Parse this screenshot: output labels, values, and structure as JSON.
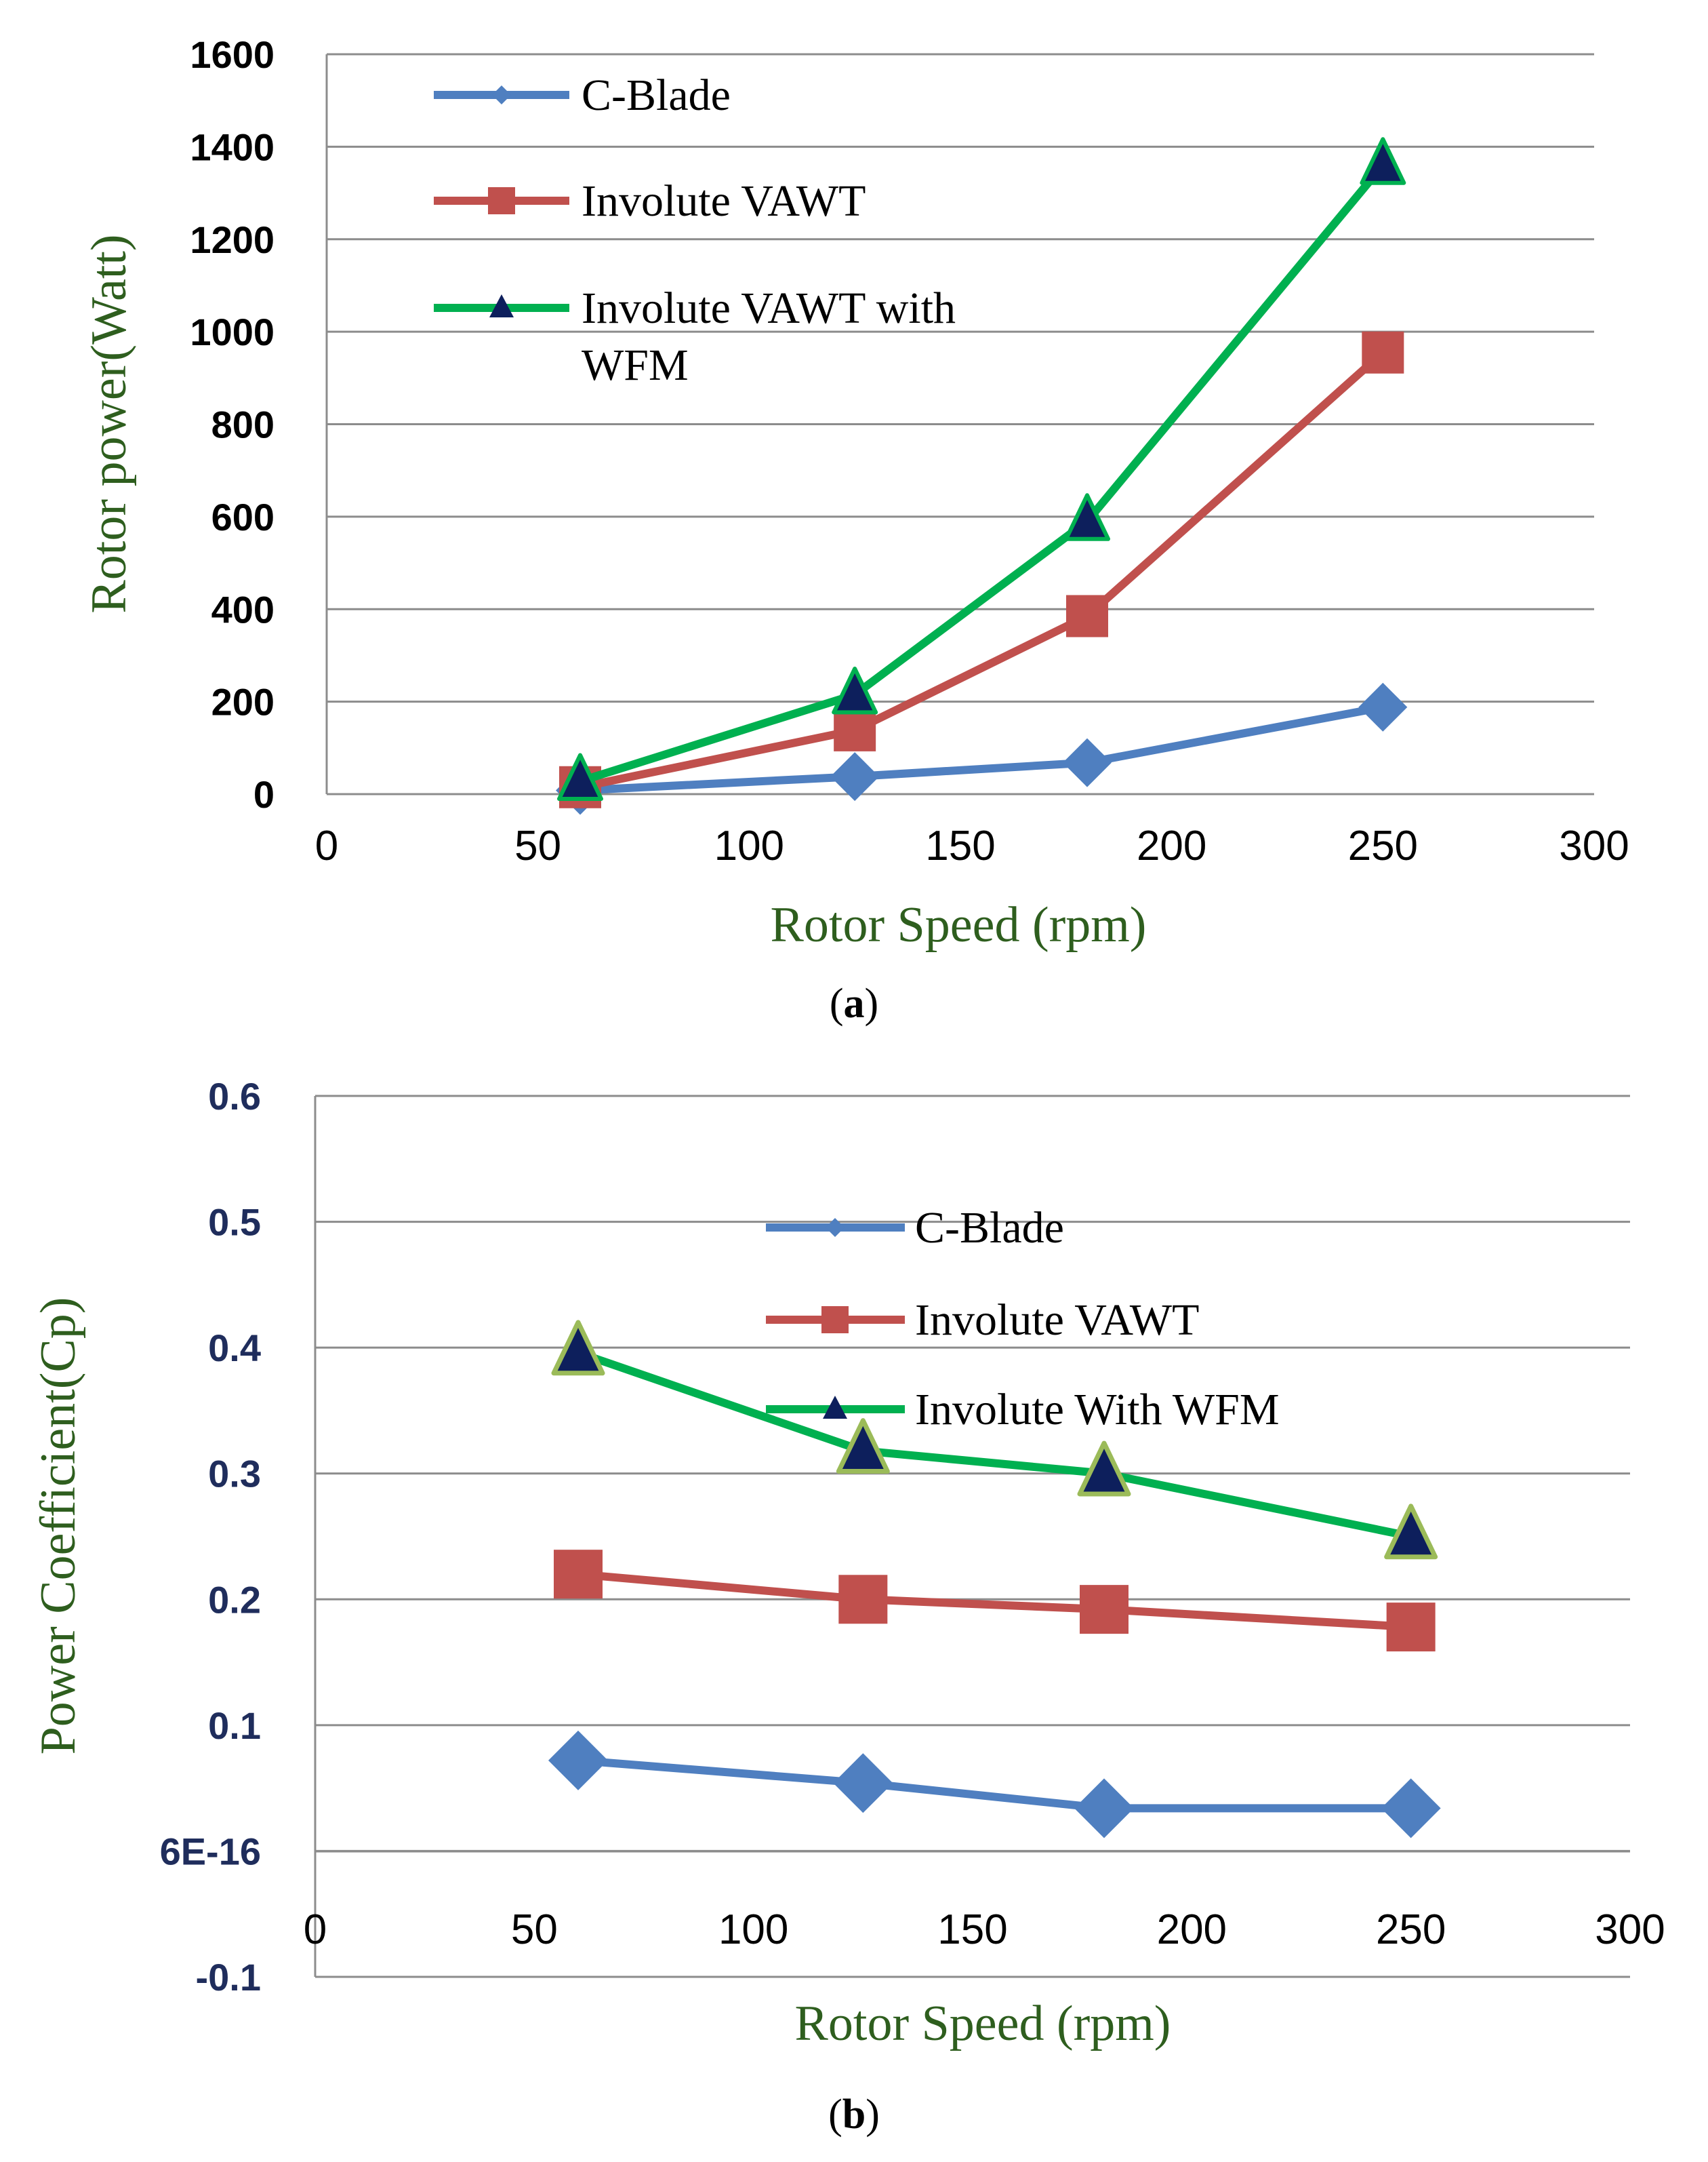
{
  "colors": {
    "c_blade": "#4f7fc0",
    "involute": "#c0504d",
    "involute_wfm": "#00b050",
    "triangle_fill": "#0d1f5c",
    "triangle_edge_b": "#9bbb59",
    "axis_title": "#2e5e1e",
    "ytick_b": "#1f2d5c"
  },
  "chart_data": [
    {
      "type": "line",
      "caption_letter": "a",
      "xlabel": "Rotor Speed (rpm)",
      "ylabel": "Rotor power(Watt)",
      "xlim": [
        0,
        300
      ],
      "ylim": [
        0,
        1600
      ],
      "xticks": [
        0,
        50,
        100,
        150,
        200,
        250,
        300
      ],
      "yticks": [
        0,
        200,
        400,
        600,
        800,
        1000,
        1200,
        1400,
        1600
      ],
      "ytick_labels": [
        "0",
        "200",
        "400",
        "600",
        "800",
        "1000",
        "1200",
        "1400",
        "1600"
      ],
      "legend_position": "top-left",
      "series": [
        {
          "name": "C-Blade",
          "marker": "diamond",
          "x": [
            60,
            125,
            180,
            250
          ],
          "values": [
            8,
            38,
            68,
            188
          ]
        },
        {
          "name": "Involute VAWT",
          "marker": "square",
          "x": [
            60,
            125,
            180,
            250
          ],
          "values": [
            15,
            138,
            385,
            955
          ]
        },
        {
          "name": "Involute VAWT with WFM",
          "legend_lines": [
            "Involute VAWT with",
            "WFM"
          ],
          "marker": "triangle",
          "x": [
            60,
            125,
            180,
            250
          ],
          "values": [
            28,
            215,
            590,
            1360
          ]
        }
      ]
    },
    {
      "type": "line",
      "caption_letter": "b",
      "xlabel": "Rotor Speed (rpm)",
      "ylabel": "Power Coefficient(Cp)",
      "xlim": [
        0,
        300
      ],
      "ylim": [
        -0.1,
        0.6
      ],
      "xticks": [
        0,
        50,
        100,
        150,
        200,
        250,
        300
      ],
      "yticks": [
        -0.1,
        0,
        0.1,
        0.2,
        0.3,
        0.4,
        0.5,
        0.6
      ],
      "ytick_labels": [
        "-0.1",
        "6E-16",
        "0.1",
        "0.2",
        "0.3",
        "0.4",
        "0.5",
        "0.6"
      ],
      "legend_position": "top-center",
      "series": [
        {
          "name": "C-Blade",
          "marker": "diamond",
          "x": [
            60,
            125,
            180,
            250
          ],
          "values": [
            0.072,
            0.054,
            0.034,
            0.034
          ]
        },
        {
          "name": "Involute VAWT",
          "marker": "square",
          "x": [
            60,
            125,
            180,
            250
          ],
          "values": [
            0.22,
            0.2,
            0.192,
            0.178
          ]
        },
        {
          "name": "Involute With WFM",
          "marker": "triangle",
          "x": [
            60,
            125,
            180,
            250
          ],
          "values": [
            0.396,
            0.318,
            0.3,
            0.25
          ]
        }
      ]
    }
  ]
}
